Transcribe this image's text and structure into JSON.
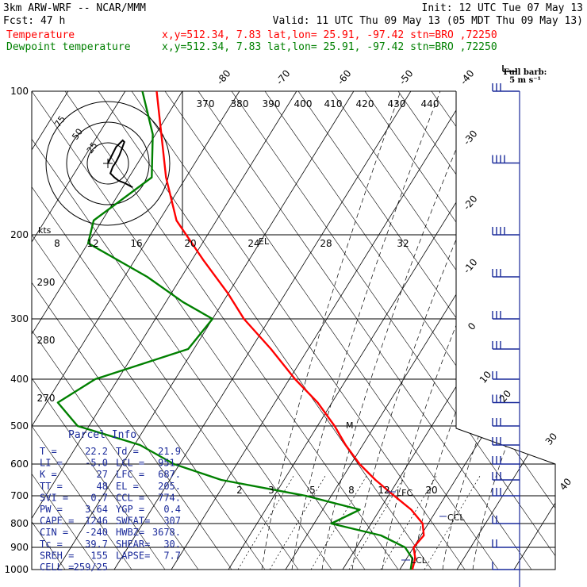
{
  "header": {
    "model": "3km ARW-WRF -- NCAR/MMM",
    "init": "Init: 12 UTC Tue 07 May 13",
    "fcst": "Fcst:    47 h",
    "valid": "Valid: 11 UTC Thu 09 May 13 (05 MDT Thu 09 May 13)",
    "lines": [
      {
        "name": "Temperature",
        "info": "x,y=512.34,  7.83   lat,lon= 25.91, -97.42   stn=BRO ,72250",
        "color": "#ff0000"
      },
      {
        "name": "Dewpoint temperature",
        "info": "x,y=512.34,  7.83   lat,lon= 25.91, -97.42   stn=BRO ,72250",
        "color": "#008000"
      }
    ]
  },
  "barb_legend": {
    "line1": "Full barb:",
    "line2": "5 m s⁻¹"
  },
  "hodograph": {
    "kts_label": "kts",
    "ring_labels": [
      "75",
      "50",
      "25"
    ],
    "axis_ticks": [
      "8",
      "12",
      "16",
      "20",
      "24",
      "28",
      "32"
    ],
    "el_label": "EL"
  },
  "parcel_info": {
    "title": "Parcel Info",
    "rows": [
      [
        "T  =",
        "22.2",
        "Td =",
        "21.9"
      ],
      [
        "LI =",
        "-5.0",
        "LCL =",
        "951."
      ],
      [
        "K  =",
        "27",
        "LFC =",
        "687."
      ],
      [
        "TT =",
        "48",
        "EL =",
        "205."
      ],
      [
        "SVI =",
        "0.7",
        "CCL =",
        "774."
      ],
      [
        "PW =",
        "3.64",
        "YGP =",
        "0.4"
      ],
      [
        "CAPE =",
        "1246",
        "SWEAT=",
        "307"
      ],
      [
        "CIN =",
        "-240",
        "HWBZ=",
        "3678."
      ],
      [
        "Tc =",
        "39.7",
        "SHEAR=",
        "30."
      ],
      [
        "SREH =",
        "155",
        "LAPSE=",
        "7.7"
      ],
      [
        "CELL =",
        "259/25",
        "",
        ""
      ]
    ]
  },
  "annotations": {
    "lfc": "LFC",
    "ccl": "CCL",
    "lcl": "LCL",
    "mark": "M"
  },
  "colors": {
    "temperature": "#ff0000",
    "dewpoint": "#008000",
    "text": "#1a2a9a",
    "barbs": "#1a2a9a"
  },
  "chart_data": {
    "type": "line",
    "title": "",
    "xlabel": "",
    "ylabel": "",
    "y_axis_pressure_hPa": [
      100,
      200,
      300,
      400,
      500,
      600,
      700,
      800,
      900,
      1000
    ],
    "x_axis_isotherm_labels_C": [
      -80,
      -70,
      -60,
      -50,
      -40,
      -30,
      -20,
      -10,
      0,
      10,
      20,
      30,
      40
    ],
    "dry_adiabat_labels_K": [
      370,
      380,
      390,
      400,
      410,
      420,
      430,
      440,
      290,
      280,
      270
    ],
    "mixing_ratio_labels_gkg": [
      2,
      3,
      5,
      8,
      12,
      20
    ],
    "series": [
      {
        "name": "Temperature",
        "color": "#ff0000",
        "points": [
          [
            100,
            -74.5
          ],
          [
            130,
            -69
          ],
          [
            160,
            -63.5
          ],
          [
            190,
            -57
          ],
          [
            230,
            -48
          ],
          [
            270,
            -40
          ],
          [
            300,
            -34.5
          ],
          [
            350,
            -26.5
          ],
          [
            400,
            -19
          ],
          [
            450,
            -12.5
          ],
          [
            500,
            -7
          ],
          [
            550,
            -3
          ],
          [
            600,
            1.5
          ],
          [
            650,
            6
          ],
          [
            700,
            11
          ],
          [
            750,
            15.5
          ],
          [
            800,
            19
          ],
          [
            850,
            20.5
          ],
          [
            900,
            20
          ],
          [
            950,
            21.5
          ],
          [
            1000,
            22.2
          ]
        ]
      },
      {
        "name": "Dewpoint temperature",
        "color": "#008000",
        "points": [
          [
            100,
            -77
          ],
          [
            130,
            -70.5
          ],
          [
            160,
            -66
          ],
          [
            190,
            -71.5
          ],
          [
            210,
            -70
          ],
          [
            250,
            -56
          ],
          [
            280,
            -47
          ],
          [
            300,
            -40
          ],
          [
            350,
            -41
          ],
          [
            400,
            -54
          ],
          [
            450,
            -58
          ],
          [
            500,
            -52
          ],
          [
            550,
            -39
          ],
          [
            600,
            -31
          ],
          [
            650,
            -21
          ],
          [
            700,
            -4.5
          ],
          [
            750,
            6.5
          ],
          [
            800,
            3
          ],
          [
            850,
            13
          ],
          [
            900,
            18.5
          ],
          [
            950,
            21
          ],
          [
            1000,
            21.9
          ]
        ]
      }
    ],
    "hodograph_kts": [
      [
        0,
        0
      ],
      [
        6,
        -12
      ],
      [
        10,
        -20
      ],
      [
        14,
        -24
      ],
      [
        18,
        -28
      ],
      [
        20,
        -26
      ],
      [
        17,
        -18
      ],
      [
        14,
        -10
      ],
      [
        10,
        -2
      ],
      [
        6,
        4
      ],
      [
        3,
        12
      ],
      [
        8,
        17
      ],
      [
        13,
        21
      ],
      [
        21,
        24
      ],
      [
        30,
        29
      ]
    ],
    "wind_barbs": [
      {
        "p": 100,
        "spd_ms": 15,
        "dir": 280
      },
      {
        "p": 150,
        "spd_ms": 20,
        "dir": 280
      },
      {
        "p": 200,
        "spd_ms": 20,
        "dir": 270
      },
      {
        "p": 250,
        "spd_ms": 15,
        "dir": 270
      },
      {
        "p": 300,
        "spd_ms": 15,
        "dir": 270
      },
      {
        "p": 350,
        "spd_ms": 15,
        "dir": 270
      },
      {
        "p": 400,
        "spd_ms": 10,
        "dir": 270
      },
      {
        "p": 450,
        "spd_ms": 15,
        "dir": 270
      },
      {
        "p": 500,
        "spd_ms": 15,
        "dir": 260
      },
      {
        "p": 550,
        "spd_ms": 15,
        "dir": 260
      },
      {
        "p": 600,
        "spd_ms": 15,
        "dir": 260
      },
      {
        "p": 650,
        "spd_ms": 15,
        "dir": 250
      },
      {
        "p": 700,
        "spd_ms": 15,
        "dir": 240
      },
      {
        "p": 800,
        "spd_ms": 10,
        "dir": 200
      },
      {
        "p": 900,
        "spd_ms": 10,
        "dir": 170
      },
      {
        "p": 1000,
        "spd_ms": 5,
        "dir": 150
      }
    ],
    "grid": true
  }
}
